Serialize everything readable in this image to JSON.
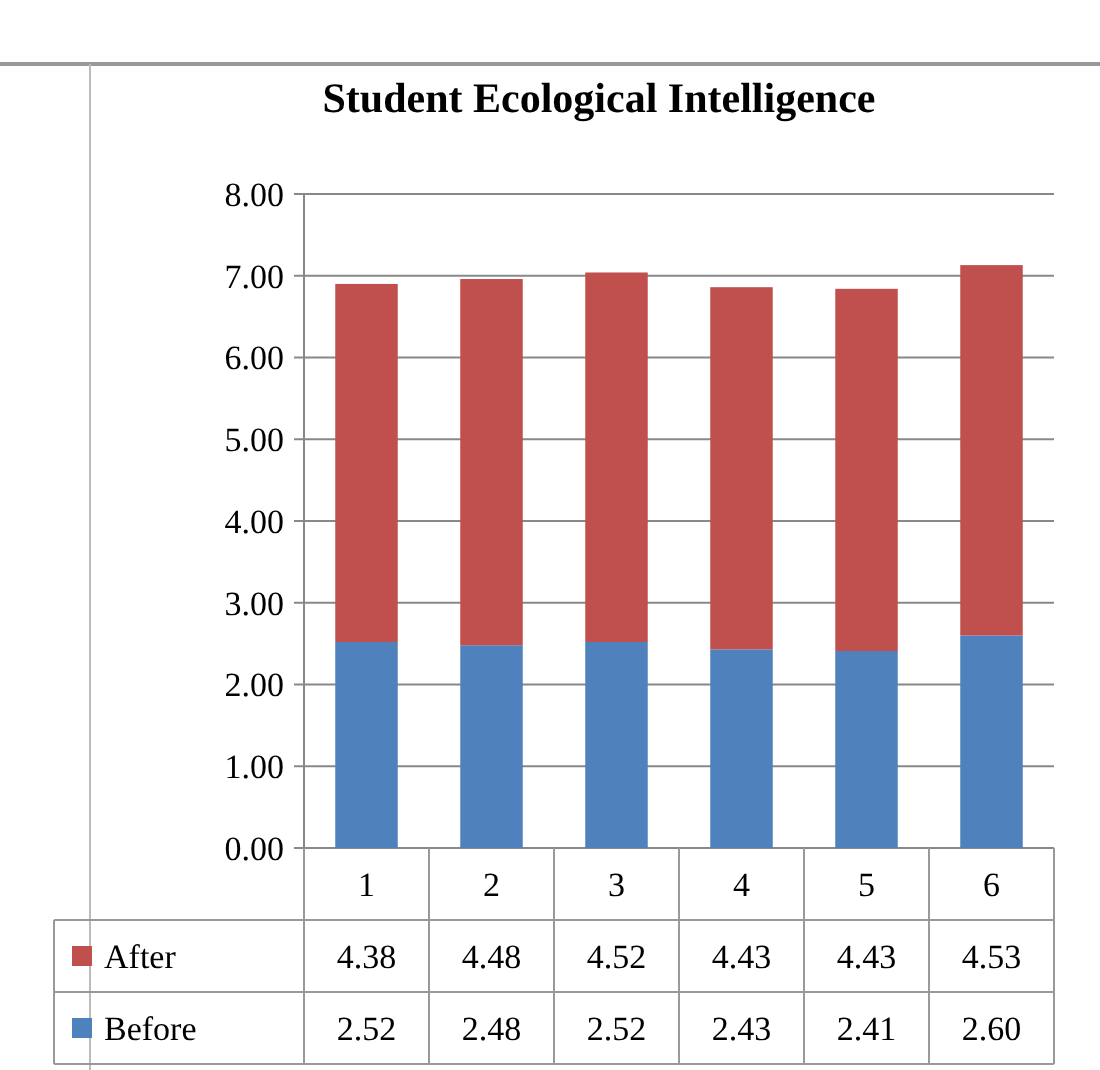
{
  "chart_data": {
    "type": "bar",
    "title": "Student Ecological Intelligence",
    "categories": [
      "1",
      "2",
      "3",
      "4",
      "5",
      "6"
    ],
    "stacked": true,
    "grid": "y",
    "legend": "bottom left",
    "series": [
      {
        "name": "Before",
        "color": "#4f81bd",
        "values": [
          2.52,
          2.48,
          2.52,
          2.43,
          2.41,
          2.6
        ],
        "value_labels": [
          "2.52",
          "2.48",
          "2.52",
          "2.43",
          "2.41",
          "2.60"
        ]
      },
      {
        "name": "After",
        "color": "#c0504d",
        "values": [
          4.38,
          4.48,
          4.52,
          4.43,
          4.43,
          4.53
        ],
        "value_labels": [
          "4.38",
          "4.48",
          "4.52",
          "4.43",
          "4.43",
          "4.53"
        ]
      }
    ],
    "ylim": [
      0,
      8
    ],
    "yticks": [
      {
        "value": 0,
        "label": "0.00"
      },
      {
        "value": 1,
        "label": "1.00"
      },
      {
        "value": 2,
        "label": "2.00"
      },
      {
        "value": 3,
        "label": "3.00"
      },
      {
        "value": 4,
        "label": "4.00"
      },
      {
        "value": 5,
        "label": "5.00"
      },
      {
        "value": 6,
        "label": "6.00"
      },
      {
        "value": 7,
        "label": "7.00"
      },
      {
        "value": 8,
        "label": "8.00"
      }
    ]
  }
}
